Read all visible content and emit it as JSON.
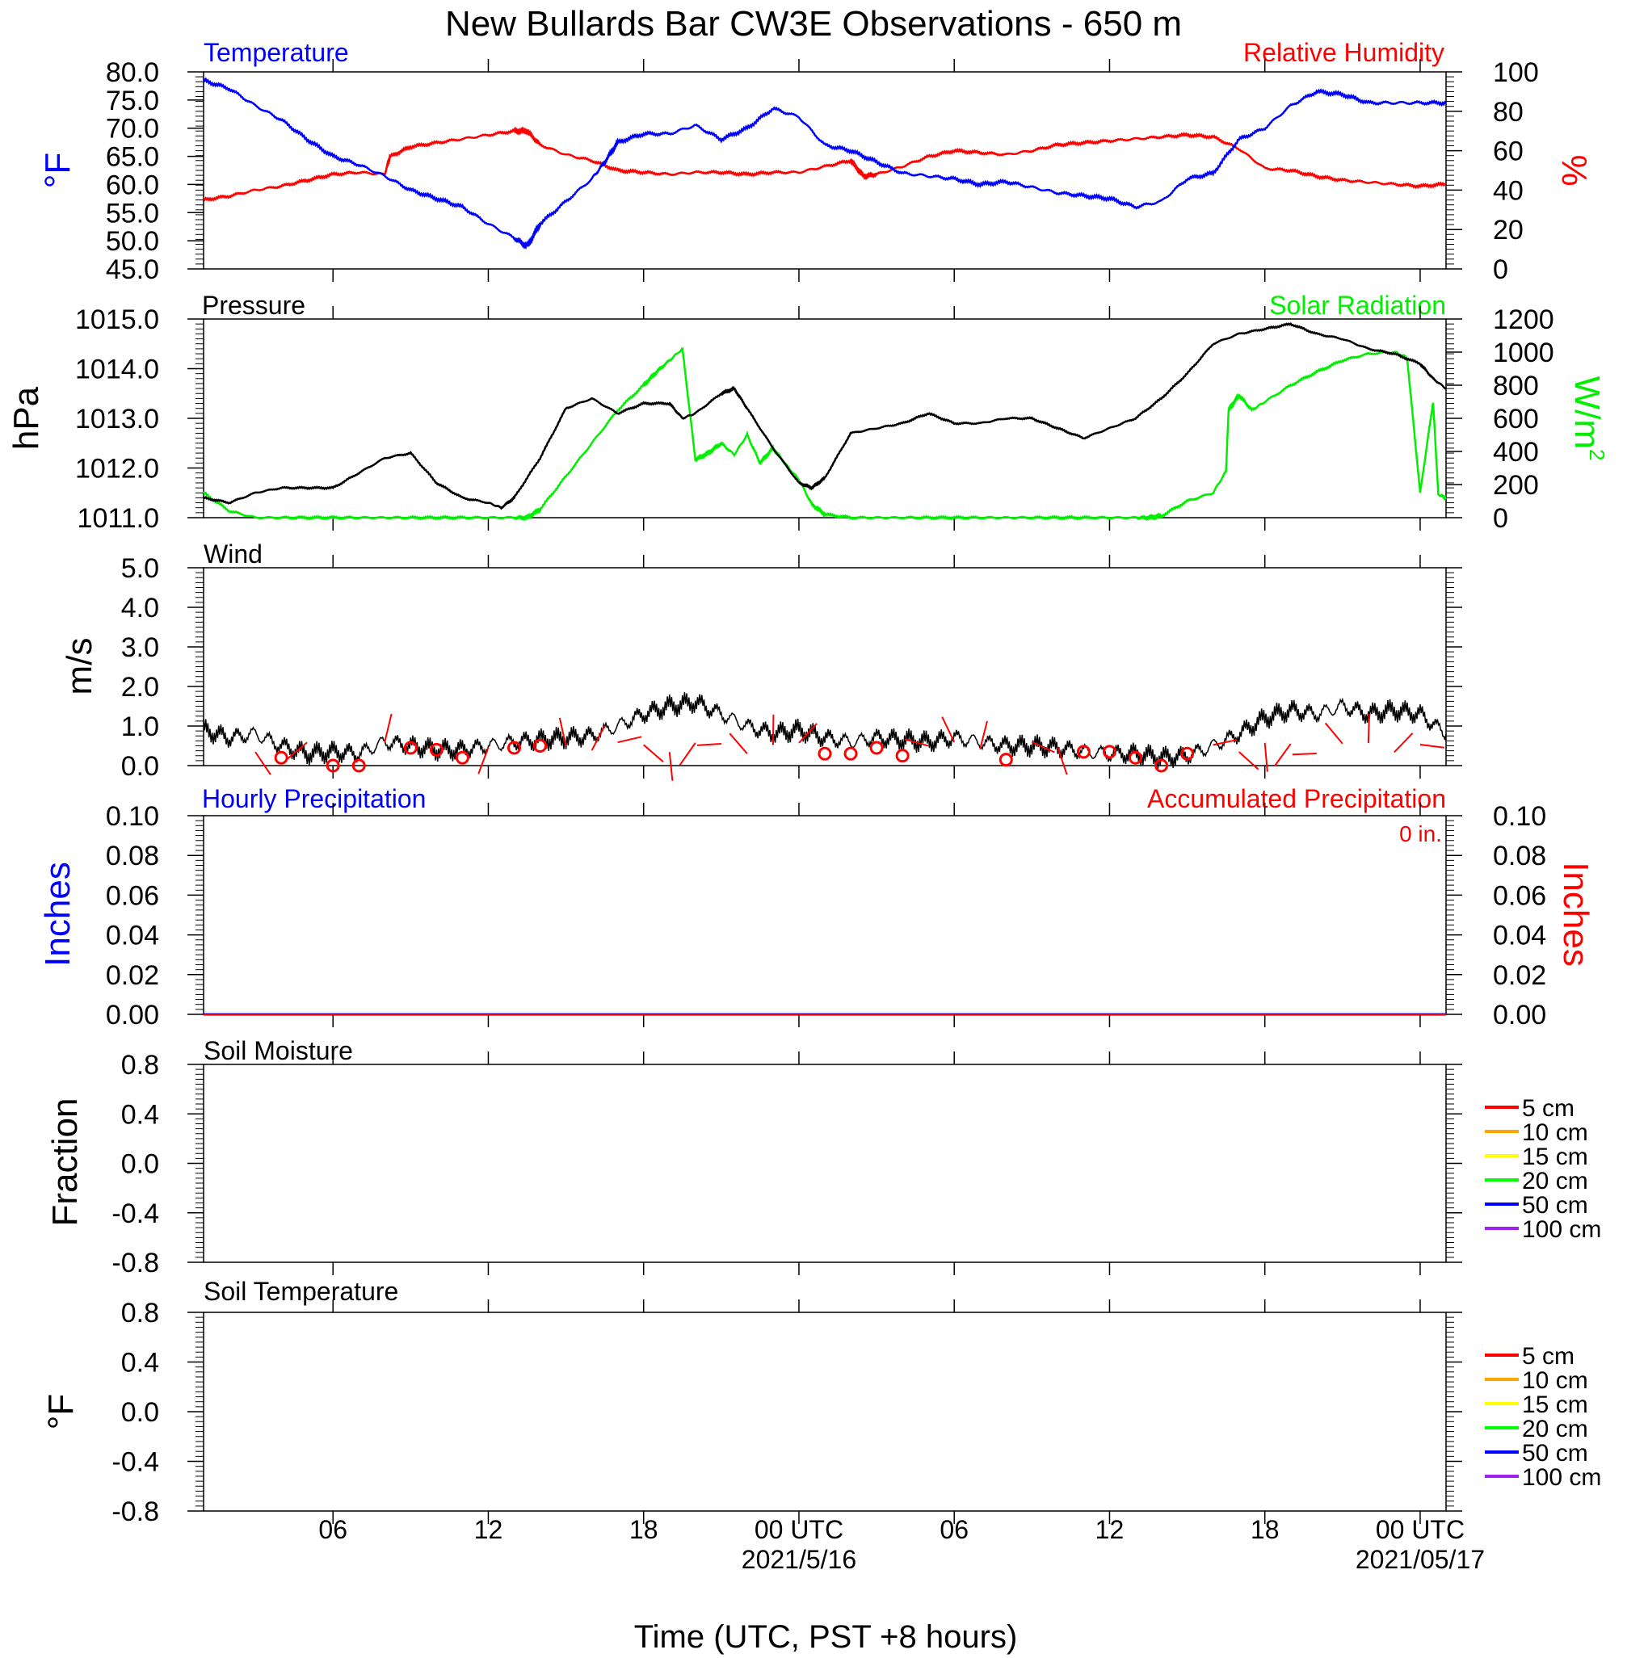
{
  "title": "New Bullards Bar CW3E Observations - 650 m",
  "xlabel": "Time (UTC, PST +8 hours)",
  "x_ticks": [
    {
      "hour": 6,
      "label": "06",
      "sub": ""
    },
    {
      "hour": 12,
      "label": "12",
      "sub": ""
    },
    {
      "hour": 18,
      "label": "18",
      "sub": ""
    },
    {
      "hour": 24,
      "label": "00 UTC",
      "sub": "2021/5/16"
    },
    {
      "hour": 30,
      "label": "06",
      "sub": ""
    },
    {
      "hour": 36,
      "label": "12",
      "sub": ""
    },
    {
      "hour": 42,
      "label": "18",
      "sub": ""
    },
    {
      "hour": 48,
      "label": "00 UTC",
      "sub": "2021/05/17"
    }
  ],
  "colors": {
    "temperature": "#0000ff",
    "humidity": "#ff0000",
    "pressure": "#000000",
    "solar": "#00ee00",
    "wind": "#000000",
    "barbs": "#ff0000",
    "hourly_precip": "#0000ff",
    "accum_precip": "#ff0000"
  },
  "panels": {
    "temperature": {
      "left_title": "Temperature",
      "right_title": "Relative Humidity",
      "left_axis_label": "°F",
      "right_axis_label": "%",
      "left_ticks": [
        "80.0",
        "75.0",
        "70.0",
        "65.0",
        "60.0",
        "55.0",
        "50.0",
        "45.0"
      ],
      "right_ticks": [
        "100",
        "80",
        "60",
        "40",
        "20",
        "0"
      ]
    },
    "pressure": {
      "left_title": "Pressure",
      "right_title": "Solar Radiation",
      "left_axis_label": "hPa",
      "right_axis_label": "W/m",
      "right_axis_sup": "2",
      "left_ticks": [
        "1015.0",
        "1014.0",
        "1013.0",
        "1012.0",
        "1011.0"
      ],
      "right_ticks": [
        "1200",
        "1000",
        "800",
        "600",
        "400",
        "200",
        "0"
      ]
    },
    "wind": {
      "left_title": "Wind",
      "left_axis_label": "m/s",
      "left_ticks": [
        "5.0",
        "4.0",
        "3.0",
        "2.0",
        "1.0",
        "0.0"
      ]
    },
    "precip": {
      "left_title": "Hourly Precipitation",
      "right_title": "Accumulated Precipitation",
      "annotation": "0 in.",
      "left_axis_label": "Inches",
      "right_axis_label": "Inches",
      "left_ticks": [
        "0.10",
        "0.08",
        "0.06",
        "0.04",
        "0.02",
        "0.00"
      ],
      "right_ticks": [
        "0.10",
        "0.08",
        "0.06",
        "0.04",
        "0.02",
        "0.00"
      ]
    },
    "soil_moisture": {
      "left_title": "Soil Moisture",
      "left_axis_label": "Fraction",
      "left_ticks": [
        "0.8",
        "0.4",
        "0.0",
        "-0.4",
        "-0.8"
      ],
      "legend": [
        {
          "label": "5 cm",
          "color": "#ff0000"
        },
        {
          "label": "10 cm",
          "color": "#ffa500"
        },
        {
          "label": "15 cm",
          "color": "#ffff00"
        },
        {
          "label": "20 cm",
          "color": "#00ff00"
        },
        {
          "label": "50 cm",
          "color": "#0000ff"
        },
        {
          "label": "100 cm",
          "color": "#a020f0"
        }
      ]
    },
    "soil_temperature": {
      "left_title": "Soil Temperature",
      "left_axis_label": "°F",
      "left_ticks": [
        "0.8",
        "0.4",
        "0.0",
        "-0.4",
        "-0.8"
      ],
      "legend": [
        {
          "label": "5 cm",
          "color": "#ff0000"
        },
        {
          "label": "10 cm",
          "color": "#ffa500"
        },
        {
          "label": "15 cm",
          "color": "#ffff00"
        },
        {
          "label": "20 cm",
          "color": "#00ff00"
        },
        {
          "label": "50 cm",
          "color": "#0000ff"
        },
        {
          "label": "100 cm",
          "color": "#a020f0"
        }
      ]
    }
  },
  "chart_data": [
    {
      "type": "line",
      "xlim": [
        1,
        49
      ],
      "ylim": [
        45,
        80
      ],
      "y2lim": [
        0,
        100
      ],
      "series": [
        {
          "name": "Temperature",
          "axis": "left",
          "x": [
            1,
            2,
            3,
            4,
            5,
            6,
            7,
            8,
            9,
            10,
            11,
            12,
            13,
            13.5,
            14,
            15,
            16,
            16.5,
            17,
            18,
            19,
            20,
            21,
            22,
            23,
            24,
            25,
            26,
            27,
            28,
            29,
            30,
            31,
            32,
            33,
            34,
            35,
            36,
            37,
            38,
            39,
            40,
            41,
            42,
            43,
            44,
            45,
            46,
            47,
            48,
            49
          ],
          "y": [
            78.5,
            77,
            74,
            71.5,
            68,
            65,
            63.5,
            61.5,
            59,
            57.5,
            56,
            53,
            50.5,
            49,
            53,
            57,
            61,
            64,
            67.5,
            69,
            69,
            70.5,
            68,
            70,
            73.5,
            72,
            67,
            66,
            64,
            62,
            61.5,
            61,
            60,
            60.5,
            59.5,
            58.5,
            58,
            57.5,
            56,
            57,
            61,
            62,
            68,
            70,
            74,
            76.5,
            76,
            74.5,
            74.5,
            74.5,
            74.5
          ]
        },
        {
          "name": "Relative Humidity",
          "axis": "right",
          "x": [
            1,
            2,
            3,
            4,
            5,
            6,
            7,
            8,
            8.2,
            9,
            10,
            11,
            12,
            13,
            13.5,
            14,
            15,
            16,
            17,
            18,
            19,
            20,
            21,
            22,
            23,
            24,
            25,
            26,
            26.5,
            27,
            28,
            29,
            30,
            31,
            32,
            33,
            34,
            35,
            36,
            37,
            38,
            39,
            40,
            41,
            42,
            43,
            44,
            45,
            46,
            47,
            48,
            49
          ],
          "y": [
            35,
            37,
            40,
            42,
            45,
            48,
            49,
            48,
            57,
            62,
            64,
            66,
            68,
            70,
            70,
            63,
            58,
            55,
            50,
            49,
            48,
            49,
            49,
            48,
            49,
            49,
            52,
            55,
            47,
            48,
            52,
            57,
            60,
            59,
            58,
            60,
            63,
            64,
            65,
            66,
            67,
            68,
            67,
            61,
            51,
            50,
            47,
            45,
            44,
            43,
            42,
            43
          ]
        }
      ]
    },
    {
      "type": "line",
      "xlim": [
        1,
        49
      ],
      "ylim": [
        1011,
        1015
      ],
      "y2lim": [
        0,
        1200
      ],
      "series": [
        {
          "name": "Pressure",
          "axis": "left",
          "x": [
            1,
            2,
            3,
            4,
            5,
            6,
            7,
            8,
            9,
            10,
            11,
            12,
            12.5,
            13,
            14,
            15,
            16,
            17,
            18,
            19,
            19.5,
            20,
            21,
            21.5,
            22,
            23,
            24,
            24.5,
            25,
            26,
            27,
            28,
            29,
            30,
            31,
            32,
            33,
            34,
            35,
            36,
            37,
            38,
            39,
            40,
            41,
            42,
            43,
            44,
            45,
            46,
            47,
            48,
            48.5,
            49
          ],
          "y": [
            1011.4,
            1011.3,
            1011.5,
            1011.6,
            1011.6,
            1011.6,
            1011.9,
            1012.2,
            1012.3,
            1011.7,
            1011.4,
            1011.3,
            1011.2,
            1011.4,
            1012.2,
            1013.2,
            1013.4,
            1013.1,
            1013.3,
            1013.3,
            1013.0,
            1013.1,
            1013.5,
            1013.6,
            1013.2,
            1012.4,
            1011.7,
            1011.6,
            1011.8,
            1012.7,
            1012.8,
            1012.9,
            1013.1,
            1012.9,
            1012.9,
            1013.0,
            1013.0,
            1012.8,
            1012.6,
            1012.8,
            1013.0,
            1013.4,
            1013.9,
            1014.5,
            1014.7,
            1014.8,
            1014.9,
            1014.7,
            1014.6,
            1014.4,
            1014.3,
            1014.1,
            1013.8,
            1013.6
          ]
        },
        {
          "name": "Solar Radiation",
          "axis": "right",
          "x": [
            1,
            2,
            3,
            4,
            5,
            6,
            7,
            8,
            9,
            10,
            11,
            12,
            13,
            13.5,
            14,
            15,
            16,
            17,
            18,
            18.5,
            19,
            19.5,
            20,
            20.5,
            21,
            21.5,
            22,
            22.5,
            23,
            23.5,
            24,
            24.5,
            25,
            26,
            27,
            28,
            29,
            30,
            31,
            32,
            33,
            34,
            35,
            36,
            37,
            37.5,
            38,
            39,
            40,
            40.5,
            40.6,
            41,
            41.5,
            42,
            43,
            44,
            45,
            46,
            47,
            47.5,
            48,
            48.5,
            48.7,
            49
          ],
          "y": [
            150,
            40,
            0,
            0,
            0,
            0,
            0,
            0,
            0,
            0,
            0,
            0,
            0,
            0,
            50,
            250,
            450,
            650,
            800,
            880,
            950,
            1020,
            350,
            390,
            450,
            380,
            500,
            330,
            420,
            320,
            230,
            80,
            20,
            0,
            0,
            0,
            0,
            0,
            0,
            0,
            0,
            0,
            0,
            0,
            0,
            0,
            10,
            100,
            150,
            280,
            650,
            740,
            650,
            700,
            800,
            880,
            950,
            990,
            1000,
            960,
            150,
            700,
            140,
            120
          ]
        }
      ]
    },
    {
      "type": "line",
      "xlim": [
        1,
        49
      ],
      "ylim": [
        0,
        5
      ],
      "series": [
        {
          "name": "Wind",
          "axis": "left",
          "x": [
            1,
            2,
            3,
            4,
            5,
            6,
            7,
            8,
            9,
            10,
            11,
            12,
            13,
            14,
            15,
            16,
            17,
            18,
            19,
            20,
            21,
            22,
            23,
            24,
            25,
            26,
            27,
            28,
            29,
            30,
            31,
            32,
            33,
            34,
            35,
            36,
            37,
            38,
            39,
            40,
            41,
            42,
            43,
            44,
            45,
            46,
            47,
            48,
            49
          ],
          "y": [
            0.9,
            0.7,
            0.8,
            0.5,
            0.3,
            0.35,
            0.3,
            0.6,
            0.5,
            0.4,
            0.4,
            0.5,
            0.6,
            0.65,
            0.7,
            0.75,
            1.0,
            1.3,
            1.5,
            1.6,
            1.3,
            1.0,
            0.8,
            0.9,
            0.7,
            0.6,
            0.7,
            0.65,
            0.6,
            0.7,
            0.6,
            0.5,
            0.5,
            0.45,
            0.35,
            0.3,
            0.3,
            0.2,
            0.25,
            0.5,
            0.8,
            1.2,
            1.4,
            1.3,
            1.5,
            1.3,
            1.4,
            1.3,
            0.8
          ]
        },
        {
          "name": "Calm",
          "axis": "left",
          "kind": "circles",
          "x": [
            4,
            6,
            7,
            9,
            10,
            11,
            13,
            14,
            25,
            26,
            27,
            28,
            32,
            35,
            36,
            37,
            38,
            39
          ],
          "y": [
            0.2,
            0.0,
            0.0,
            0.45,
            0.4,
            0.2,
            0.45,
            0.5,
            0.3,
            0.3,
            0.45,
            0.25,
            0.15,
            0.35,
            0.35,
            0.2,
            0.0,
            0.3
          ]
        }
      ]
    },
    {
      "type": "line",
      "xlim": [
        1,
        49
      ],
      "ylim": [
        0,
        0.1
      ],
      "series": [
        {
          "name": "Hourly Precipitation",
          "axis": "left",
          "x": [
            1,
            49
          ],
          "y": [
            0,
            0
          ]
        },
        {
          "name": "Accumulated Precipitation",
          "axis": "right",
          "x": [
            1,
            49
          ],
          "y": [
            0,
            0
          ]
        }
      ]
    },
    {
      "type": "line",
      "xlim": [
        1,
        49
      ],
      "ylim": [
        -1,
        1
      ],
      "series": []
    },
    {
      "type": "line",
      "xlim": [
        1,
        49
      ],
      "ylim": [
        -1,
        1
      ],
      "series": []
    }
  ]
}
